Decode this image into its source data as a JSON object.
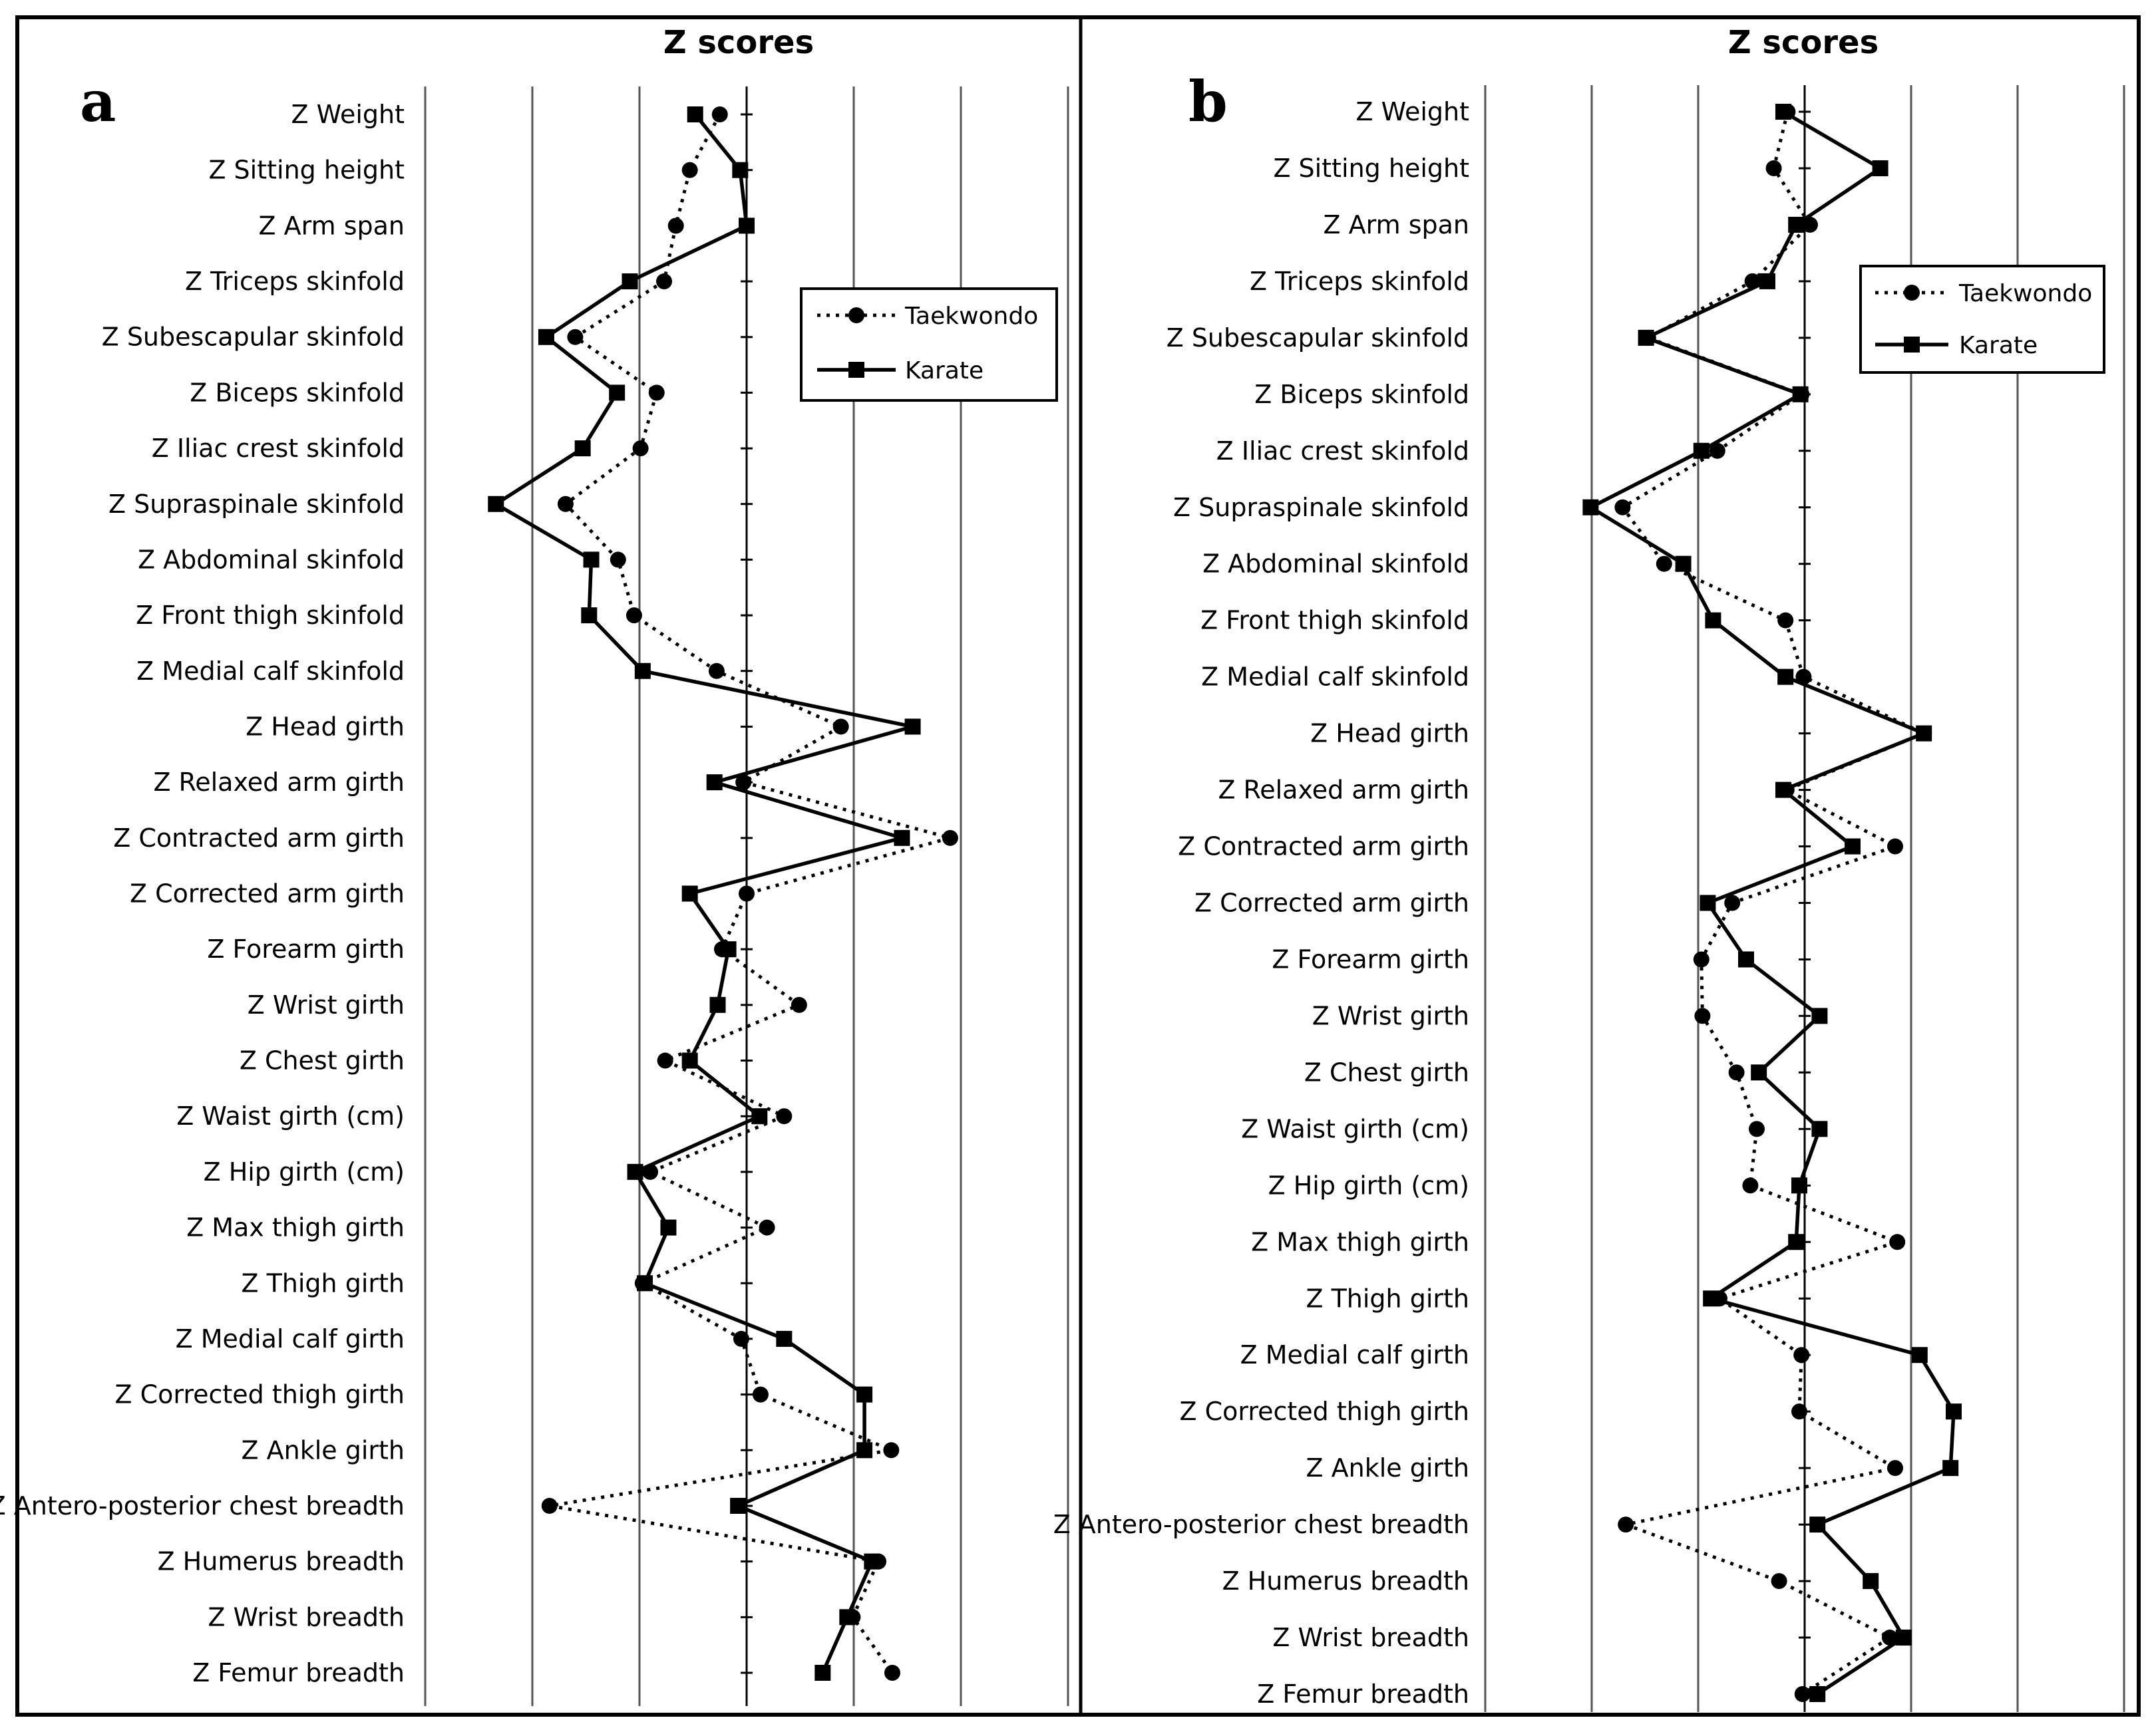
{
  "figure": {
    "axis_title": "Z scores",
    "legend": {
      "taekwondo": "Taekwondo",
      "karate": "Karate"
    }
  },
  "colors": {
    "ink": "#000000",
    "grid": "#555555",
    "background": "#ffffff"
  },
  "chart_data": [
    {
      "type": "line",
      "orientation": "horizontal-values",
      "panel_label": "a",
      "title": "Z scores",
      "legend_position": "right",
      "grid": true,
      "xlim": [
        -3,
        3
      ],
      "categories": [
        "Z Weight",
        "Z Sitting height",
        "Z Arm span",
        "Z Triceps skinfold",
        "Z Subescapular skinfold",
        "Z Biceps skinfold",
        "Z Iliac crest skinfold",
        "Z Supraspinale skinfold",
        "Z Abdominal skinfold",
        "Z Front thigh skinfold",
        "Z Medial calf skinfold",
        "Z Head girth",
        "Z Relaxed arm girth",
        "Z Contracted arm girth",
        "Z Corrected arm girth",
        "Z Forearm girth",
        "Z Wrist girth",
        "Z Chest girth",
        "Z Waist girth (cm)",
        "Z Hip girth (cm)",
        "Z Max thigh girth",
        "Z Thigh girth",
        "Z Medial calf girth",
        "Z Corrected thigh girth",
        "Z Ankle girth",
        "Z Antero-posterior chest breadth",
        "Z Humerus breadth",
        "Z Wrist breadth",
        "Z Femur breadth"
      ],
      "series": [
        {
          "name": "Taekwondo",
          "style": "dotted",
          "marker": "circle",
          "values": [
            -0.25,
            -0.53,
            -0.66,
            -0.77,
            -1.6,
            -0.84,
            -0.99,
            -1.69,
            -1.2,
            -1.05,
            -0.28,
            0.88,
            -0.03,
            1.9,
            0.0,
            -0.23,
            0.49,
            -0.76,
            0.35,
            -0.9,
            0.19,
            -0.97,
            -0.05,
            0.13,
            1.35,
            -1.84,
            1.23,
            0.99,
            1.36
          ]
        },
        {
          "name": "Karate",
          "style": "solid",
          "marker": "square",
          "values": [
            -0.48,
            -0.06,
            0.0,
            -1.09,
            -1.87,
            -1.21,
            -1.53,
            -2.34,
            -1.45,
            -1.47,
            -0.97,
            1.55,
            -0.3,
            1.45,
            -0.53,
            -0.17,
            -0.27,
            -0.53,
            0.12,
            -1.04,
            -0.73,
            -0.95,
            0.35,
            1.1,
            1.1,
            -0.08,
            1.17,
            0.94,
            0.71
          ]
        }
      ]
    },
    {
      "type": "line",
      "orientation": "horizontal-values",
      "panel_label": "b",
      "title": "Z scores",
      "legend_position": "top-right",
      "grid": true,
      "xlim": [
        -3,
        3
      ],
      "categories": [
        "Z Weight",
        "Z Sitting height",
        "Z Arm span",
        "Z Triceps skinfold",
        "Z Subescapular skinfold",
        "Z Biceps skinfold",
        "Z Iliac crest skinfold",
        "Z Supraspinale skinfold",
        "Z Abdominal skinfold",
        "Z Front thigh skinfold",
        "Z Medial calf skinfold",
        "Z Head girth",
        "Z Relaxed arm girth",
        "Z Contracted arm girth",
        "Z Corrected arm girth",
        "Z Forearm girth",
        "Z Wrist girth",
        "Z Chest girth",
        "Z Waist girth (cm)",
        "Z Hip girth (cm)",
        "Z Max thigh girth",
        "Z Thigh girth",
        "Z Medial calf girth",
        "Z Corrected thigh girth",
        "Z Ankle girth",
        "Z Antero-posterior chest breadth",
        "Z Humerus breadth",
        "Z Wrist breadth",
        "Z Femur breadth"
      ],
      "series": [
        {
          "name": "Taekwondo",
          "style": "dotted",
          "marker": "circle",
          "values": [
            -0.16,
            -0.29,
            0.05,
            -0.49,
            -1.47,
            -0.03,
            -0.82,
            -1.71,
            -1.32,
            -0.18,
            -0.01,
            1.12,
            -0.17,
            0.85,
            -0.68,
            -0.97,
            -0.96,
            -0.64,
            -0.45,
            -0.51,
            0.87,
            -0.8,
            -0.03,
            -0.05,
            0.85,
            -1.68,
            -0.24,
            0.8,
            -0.02
          ]
        },
        {
          "name": "Karate",
          "style": "solid",
          "marker": "square",
          "values": [
            -0.2,
            0.71,
            -0.08,
            -0.35,
            -1.49,
            -0.04,
            -0.97,
            -2.01,
            -1.14,
            -0.86,
            -0.18,
            1.12,
            -0.2,
            0.45,
            -0.91,
            -0.55,
            0.14,
            -0.43,
            0.14,
            -0.05,
            -0.08,
            -0.88,
            1.08,
            1.4,
            1.37,
            0.12,
            0.62,
            0.93,
            0.12
          ]
        }
      ]
    }
  ]
}
